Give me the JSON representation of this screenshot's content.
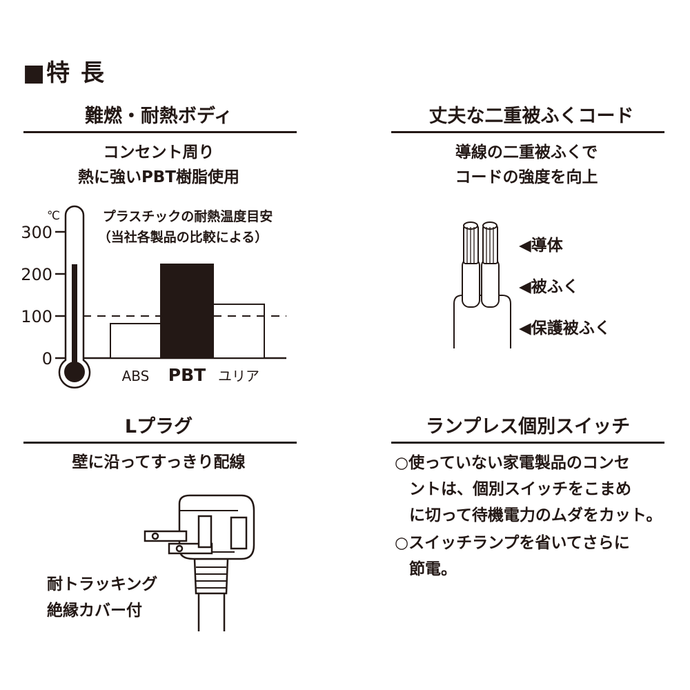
{
  "title": "■特 長",
  "sections": [
    {
      "heading": "難燃・耐熱ボディ",
      "sub": [
        "コンセント周り",
        "熱に強いPBT樹脂使用"
      ]
    },
    {
      "heading": "丈夫な二重被ふくコード",
      "sub": [
        "導線の二重被ふくで",
        "コードの強度を向上"
      ],
      "labels": [
        "◀導体",
        "◀被ふく",
        "◀保護被ふく"
      ]
    },
    {
      "heading": "Lプラグ",
      "sub": [
        "壁に沿ってすっきり配線"
      ],
      "plug_label": [
        "耐トラッキング",
        "絶縁カバー付"
      ]
    },
    {
      "heading": "ランプレス個別スイッチ",
      "bullets": [
        [
          "○使っていない家電製品のコンセ",
          "ントは、個別スイッチをこまめ",
          "に切って待機電力のムダをカット。"
        ],
        [
          "○スイッチランプを省いてさらに",
          "節電。"
        ]
      ]
    }
  ],
  "chart_data": {
    "type": "bar",
    "title": "プラスチックの耐熱温度目安",
    "subtitle": "（当社各製品の比較による）",
    "ylabel": "℃",
    "categories": [
      "ABS",
      "PBT",
      "ユリア"
    ],
    "values": [
      82,
      223,
      128
    ],
    "highlight": "PBT",
    "yticks": [
      "0",
      "100",
      "200",
      "300"
    ],
    "ylim": [
      0,
      300
    ],
    "reference_line": 100,
    "thermometer_level": 223,
    "color": "#231815"
  }
}
